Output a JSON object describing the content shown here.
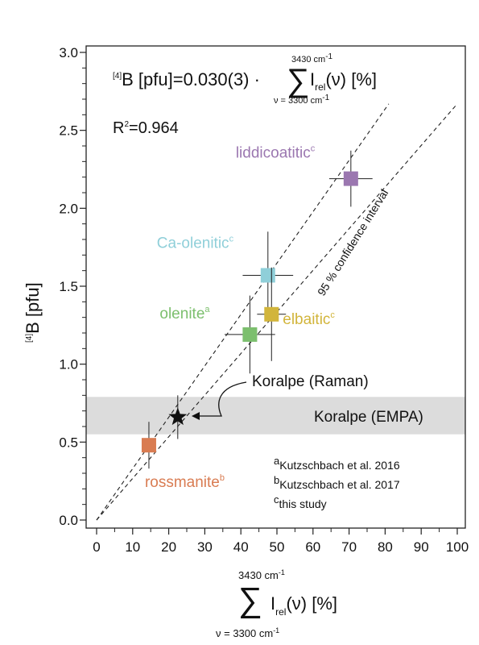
{
  "chart_data": {
    "type": "scatter",
    "x_axis": {
      "range": [
        0,
        100
      ],
      "ticks": [
        "0",
        "10",
        "20",
        "30",
        "40",
        "50",
        "60",
        "70",
        "80",
        "90",
        "100"
      ],
      "title": {
        "prefix": "",
        "sum_upper": "3430 cm",
        "sum_upper_exp": "-1",
        "sum_lower": "ν = 3300 cm",
        "sum_lower_exp": "-1",
        "main": "I",
        "main_sub": "rel",
        "suffix": "(ν) [%]"
      }
    },
    "y_axis": {
      "range": [
        0,
        3.0
      ],
      "ticks": [
        "0.0",
        "0.5",
        "1.0",
        "1.5",
        "2.0",
        "2.5",
        "3.0"
      ],
      "title_sup": "[4]",
      "title": "B [pfu]"
    },
    "equation": {
      "lhs_sup": "[4]",
      "lhs": "B [pfu]=0.030(3) ·",
      "sum_upper": "3430 cm",
      "sum_upper_exp": "-1",
      "sum_lower": "ν = 3300 cm",
      "sum_lower_exp": "-1",
      "main": "I",
      "main_sub": "rel",
      "suffix": "(ν) [%]"
    },
    "r2": {
      "label": "R",
      "sup": "2",
      "value": "=0.964"
    },
    "points": [
      {
        "name": "liddicoatitic",
        "sup": "c",
        "x": 70.5,
        "y": 2.19,
        "xerr": 6,
        "yerr": 0.18,
        "color": "#9b77b0"
      },
      {
        "name": "Ca-olenitic",
        "sup": "c",
        "x": 47.5,
        "y": 1.57,
        "xerr": 7,
        "yerr": 0.28,
        "color": "#8fcfd9"
      },
      {
        "name": "olenite",
        "sup": "a",
        "x": 42.5,
        "y": 1.19,
        "xerr": 7,
        "yerr": 0.25,
        "color": "#7cbf6e"
      },
      {
        "name": "elbaitic",
        "sup": "c",
        "x": 48.5,
        "y": 1.32,
        "xerr": 4,
        "yerr": 0.3,
        "color": "#d2b53b"
      },
      {
        "name": "rossmanite",
        "sup": "b",
        "x": 14.5,
        "y": 0.48,
        "xerr": 0,
        "yerr": 0.15,
        "color": "#d97c52"
      }
    ],
    "raman": {
      "label": "Koralpe (Raman)",
      "x": 22.5,
      "y": 0.66,
      "xerr": 0,
      "yerr": 0.14
    },
    "empa_band": {
      "label": "Koralpe (EMPA)",
      "y_min": 0.55,
      "y_max": 0.79,
      "color": "#dcdcdc"
    },
    "confidence_label": "95 % confidence interval",
    "lines": [
      {
        "x0": 0,
        "y0": 0,
        "x1": 81,
        "y1": 2.67
      },
      {
        "x0": 0,
        "y0": 0,
        "x1": 100,
        "y1": 2.67
      }
    ],
    "references": [
      {
        "sup": "a",
        "text": "Kutzschbach et al. 2016"
      },
      {
        "sup": "b",
        "text": "Kutzschbach et al. 2017"
      },
      {
        "sup": "c",
        "text": "this study"
      }
    ],
    "grid": false
  }
}
